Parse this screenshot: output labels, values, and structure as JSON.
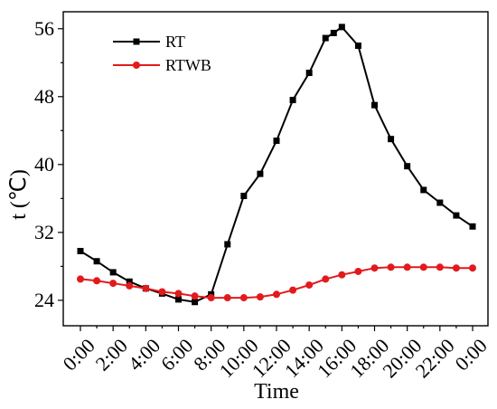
{
  "chart_data": {
    "type": "line",
    "xlabel": "Time",
    "ylabel": "t (℃)",
    "ylim": [
      21,
      58
    ],
    "yticks": [
      24,
      32,
      40,
      48,
      56
    ],
    "xticks": [
      "0:00",
      "2:00",
      "4:00",
      "6:00",
      "8:00",
      "10:00",
      "12:00",
      "14:00",
      "16:00",
      "18:00",
      "20:00",
      "22:00",
      "0:00"
    ],
    "xlim": [
      0,
      24
    ],
    "legend_position": "top-left",
    "grid": false,
    "series": [
      {
        "name": "RT",
        "color": "#000000",
        "marker": "square",
        "x": [
          0,
          1,
          2,
          3,
          4,
          5,
          6,
          7,
          8,
          9,
          10,
          11,
          12,
          13,
          14,
          15,
          15.5,
          16,
          17,
          18,
          19,
          20,
          21,
          22,
          23,
          24
        ],
        "values": [
          29.8,
          28.6,
          27.3,
          26.2,
          25.4,
          24.8,
          24.1,
          23.8,
          24.7,
          30.6,
          36.3,
          38.9,
          42.8,
          47.6,
          50.8,
          54.9,
          55.5,
          56.2,
          54.0,
          47.0,
          43.0,
          39.8,
          37.0,
          35.5,
          34.0,
          32.7
        ]
      },
      {
        "name": "RTWB",
        "color": "#e31a1c",
        "marker": "circle",
        "x": [
          0,
          1,
          2,
          3,
          4,
          5,
          6,
          7,
          8,
          9,
          10,
          11,
          12,
          13,
          14,
          15,
          16,
          17,
          18,
          19,
          20,
          21,
          22,
          23,
          24
        ],
        "values": [
          26.5,
          26.3,
          26.0,
          25.7,
          25.4,
          25.0,
          24.8,
          24.5,
          24.3,
          24.3,
          24.3,
          24.4,
          24.7,
          25.2,
          25.8,
          26.5,
          27.0,
          27.4,
          27.8,
          27.9,
          27.9,
          27.9,
          27.9,
          27.8,
          27.8
        ]
      }
    ]
  }
}
